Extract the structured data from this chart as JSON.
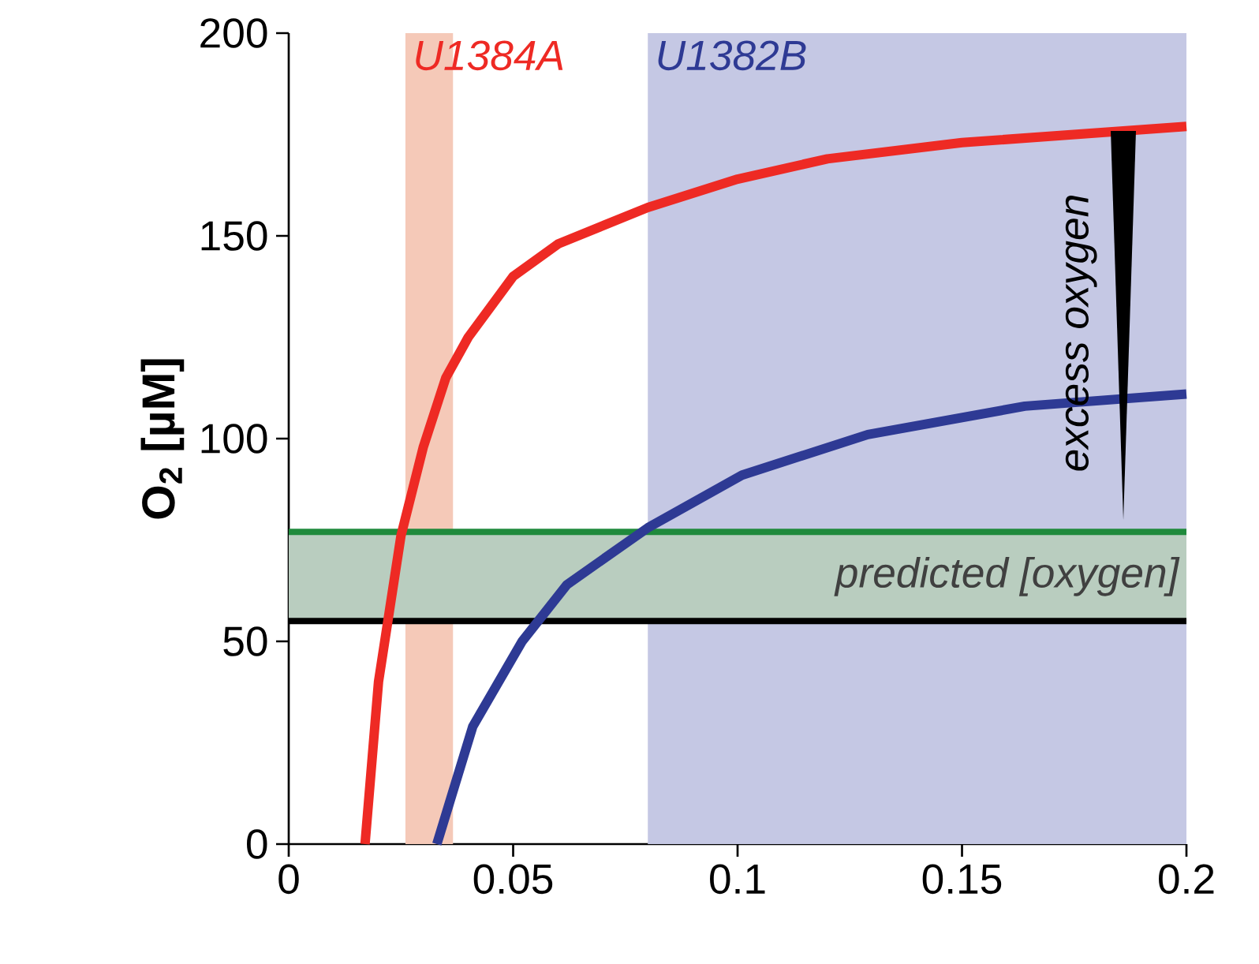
{
  "chart_data": {
    "type": "line",
    "ylabel": "O$_{2}$ [µM]",
    "xlim": [
      0,
      0.2
    ],
    "ylim": [
      0,
      200
    ],
    "xticks": [
      0,
      0.05,
      0.1,
      0.15,
      0.2
    ],
    "yticks": [
      0,
      50,
      100,
      150,
      200
    ],
    "series": [
      {
        "name": "U1384A",
        "color": "#ee2a24",
        "x": [
          0.017,
          0.02,
          0.025,
          0.03,
          0.035,
          0.04,
          0.05,
          0.06,
          0.08,
          0.1,
          0.12,
          0.15,
          0.2
        ],
        "values": [
          0,
          40,
          76,
          98,
          115,
          125,
          140,
          148,
          157,
          164,
          169,
          173,
          177
        ]
      },
      {
        "name": "U1382B",
        "color": "#2e3a94",
        "x": [
          0.033,
          0.041,
          0.052,
          0.062,
          0.08,
          0.101,
          0.129,
          0.164,
          0.2
        ],
        "values": [
          0,
          29,
          50,
          64,
          78,
          91,
          101,
          108,
          111
        ]
      }
    ],
    "bands": [
      {
        "axis": "x",
        "from": 0.026,
        "to": 0.0366,
        "color": "#f5c9b8"
      },
      {
        "axis": "x",
        "from": 0.08,
        "to": 0.2,
        "color": "#c5c8e4"
      },
      {
        "axis": "y",
        "from": 55,
        "to": 77,
        "label": "predicted [oxygen]",
        "color": "#b9cdbf"
      }
    ],
    "ref_lines": [
      {
        "axis": "y",
        "value": 77,
        "color": "#1f8a3c"
      },
      {
        "axis": "y",
        "value": 55,
        "color": "#000000"
      }
    ],
    "annotations": [
      "excess oxygen"
    ],
    "grid": false,
    "marker": "none",
    "line_style": "solid"
  }
}
